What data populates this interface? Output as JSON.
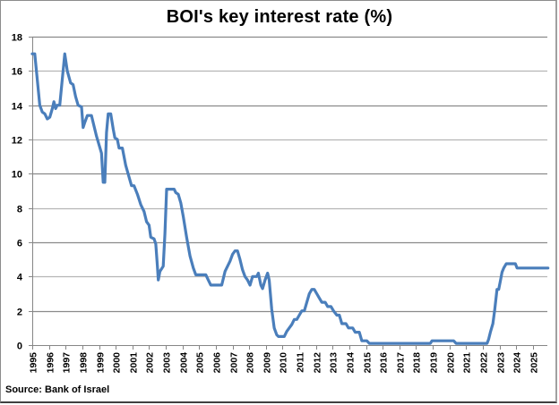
{
  "chart_data": {
    "type": "line",
    "title": "BOI's key interest rate (%)",
    "xlabel": "",
    "ylabel": "",
    "source": "Source: Bank of Israel",
    "ylim": [
      0,
      18
    ],
    "yticks": [
      0,
      2,
      4,
      6,
      8,
      10,
      12,
      14,
      16,
      18
    ],
    "xlim": [
      1995,
      2025.9
    ],
    "xticks": [
      "1995",
      "1996",
      "1997",
      "1998",
      "1999",
      "2000",
      "2001",
      "2002",
      "2003",
      "2004",
      "2005",
      "2006",
      "2007",
      "2008",
      "2009",
      "2010",
      "2011",
      "2012",
      "2013",
      "2014",
      "2015",
      "2016",
      "2017",
      "2018",
      "2019",
      "2020",
      "2021",
      "2022",
      "2023",
      "2024",
      "2025"
    ],
    "grid": true,
    "legend": null,
    "line_color": "#4a7ebb",
    "series": [
      {
        "name": "BOI key interest rate",
        "points": [
          [
            1995.0,
            17.0
          ],
          [
            1995.15,
            17.0
          ],
          [
            1995.3,
            15.5
          ],
          [
            1995.45,
            14.0
          ],
          [
            1995.6,
            13.6
          ],
          [
            1995.75,
            13.5
          ],
          [
            1995.9,
            13.2
          ],
          [
            1996.05,
            13.3
          ],
          [
            1996.2,
            13.8
          ],
          [
            1996.3,
            14.2
          ],
          [
            1996.4,
            13.8
          ],
          [
            1996.5,
            14.0
          ],
          [
            1996.65,
            14.0
          ],
          [
            1996.8,
            15.5
          ],
          [
            1996.95,
            17.0
          ],
          [
            1997.1,
            16.0
          ],
          [
            1997.3,
            15.3
          ],
          [
            1997.45,
            15.2
          ],
          [
            1997.6,
            14.5
          ],
          [
            1997.75,
            14.0
          ],
          [
            1997.95,
            13.9
          ],
          [
            1998.05,
            12.7
          ],
          [
            1998.15,
            13.0
          ],
          [
            1998.3,
            13.4
          ],
          [
            1998.55,
            13.4
          ],
          [
            1998.7,
            12.8
          ],
          [
            1998.85,
            12.2
          ],
          [
            1999.0,
            11.7
          ],
          [
            1999.15,
            11.2
          ],
          [
            1999.25,
            9.5
          ],
          [
            1999.35,
            9.5
          ],
          [
            1999.45,
            12.4
          ],
          [
            1999.55,
            13.5
          ],
          [
            1999.7,
            13.5
          ],
          [
            1999.85,
            12.6
          ],
          [
            1999.95,
            12.1
          ],
          [
            2000.1,
            12.0
          ],
          [
            2000.2,
            11.5
          ],
          [
            2000.4,
            11.5
          ],
          [
            2000.6,
            10.5
          ],
          [
            2000.8,
            9.8
          ],
          [
            2000.95,
            9.3
          ],
          [
            2001.1,
            9.3
          ],
          [
            2001.3,
            8.8
          ],
          [
            2001.5,
            8.2
          ],
          [
            2001.7,
            7.8
          ],
          [
            2001.85,
            7.2
          ],
          [
            2002.0,
            7.0
          ],
          [
            2002.1,
            6.3
          ],
          [
            2002.3,
            6.2
          ],
          [
            2002.4,
            5.9
          ],
          [
            2002.5,
            4.6
          ],
          [
            2002.55,
            3.8
          ],
          [
            2002.65,
            4.3
          ],
          [
            2002.85,
            4.6
          ],
          [
            2002.95,
            6.5
          ],
          [
            2003.05,
            9.1
          ],
          [
            2003.5,
            9.1
          ],
          [
            2003.6,
            8.9
          ],
          [
            2003.75,
            8.8
          ],
          [
            2003.9,
            8.3
          ],
          [
            2004.05,
            7.5
          ],
          [
            2004.25,
            6.3
          ],
          [
            2004.45,
            5.2
          ],
          [
            2004.65,
            4.5
          ],
          [
            2004.8,
            4.1
          ],
          [
            2005.4,
            4.1
          ],
          [
            2005.55,
            3.8
          ],
          [
            2005.7,
            3.5
          ],
          [
            2006.35,
            3.5
          ],
          [
            2006.55,
            4.3
          ],
          [
            2006.7,
            4.6
          ],
          [
            2006.85,
            4.9
          ],
          [
            2007.0,
            5.3
          ],
          [
            2007.15,
            5.5
          ],
          [
            2007.3,
            5.5
          ],
          [
            2007.45,
            5.0
          ],
          [
            2007.6,
            4.4
          ],
          [
            2007.75,
            4.0
          ],
          [
            2007.9,
            3.8
          ],
          [
            2008.05,
            3.5
          ],
          [
            2008.2,
            4.0
          ],
          [
            2008.45,
            4.0
          ],
          [
            2008.55,
            4.2
          ],
          [
            2008.7,
            3.5
          ],
          [
            2008.8,
            3.3
          ],
          [
            2008.95,
            3.8
          ],
          [
            2009.1,
            4.2
          ],
          [
            2009.2,
            3.8
          ],
          [
            2009.35,
            2.1
          ],
          [
            2009.5,
            1.0
          ],
          [
            2009.65,
            0.6
          ],
          [
            2009.75,
            0.5
          ],
          [
            2010.1,
            0.5
          ],
          [
            2010.25,
            0.8
          ],
          [
            2010.4,
            1.0
          ],
          [
            2010.55,
            1.2
          ],
          [
            2010.7,
            1.5
          ],
          [
            2010.85,
            1.5
          ],
          [
            2011.0,
            1.75
          ],
          [
            2011.15,
            2.0
          ],
          [
            2011.3,
            2.0
          ],
          [
            2011.45,
            2.5
          ],
          [
            2011.6,
            3.0
          ],
          [
            2011.75,
            3.25
          ],
          [
            2011.9,
            3.25
          ],
          [
            2012.05,
            3.0
          ],
          [
            2012.2,
            2.75
          ],
          [
            2012.35,
            2.5
          ],
          [
            2012.55,
            2.5
          ],
          [
            2012.7,
            2.25
          ],
          [
            2012.9,
            2.25
          ],
          [
            2013.05,
            2.0
          ],
          [
            2013.25,
            1.75
          ],
          [
            2013.4,
            1.75
          ],
          [
            2013.55,
            1.25
          ],
          [
            2013.8,
            1.25
          ],
          [
            2013.95,
            1.0
          ],
          [
            2014.2,
            1.0
          ],
          [
            2014.35,
            0.75
          ],
          [
            2014.6,
            0.75
          ],
          [
            2014.75,
            0.25
          ],
          [
            2015.05,
            0.25
          ],
          [
            2015.2,
            0.1
          ],
          [
            2018.85,
            0.1
          ],
          [
            2018.95,
            0.25
          ],
          [
            2020.25,
            0.25
          ],
          [
            2020.4,
            0.1
          ],
          [
            2022.25,
            0.1
          ],
          [
            2022.35,
            0.35
          ],
          [
            2022.45,
            0.75
          ],
          [
            2022.6,
            1.25
          ],
          [
            2022.7,
            2.0
          ],
          [
            2022.85,
            3.25
          ],
          [
            2022.95,
            3.25
          ],
          [
            2023.05,
            3.75
          ],
          [
            2023.15,
            4.25
          ],
          [
            2023.25,
            4.5
          ],
          [
            2023.4,
            4.75
          ],
          [
            2023.95,
            4.75
          ],
          [
            2024.05,
            4.5
          ],
          [
            2025.9,
            4.5
          ]
        ]
      }
    ]
  }
}
